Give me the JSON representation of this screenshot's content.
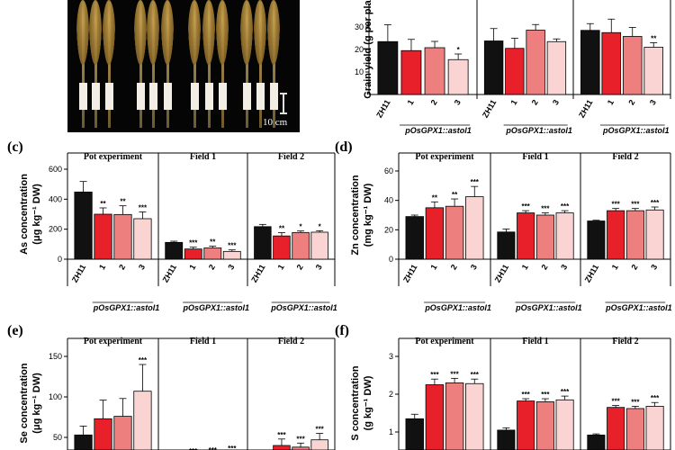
{
  "photo": {
    "scale_label": "10 cm"
  },
  "panel_labels": {
    "c": "(c)",
    "d": "(d)",
    "e": "(e)",
    "f": "(f)"
  },
  "genotype_label": "pOsGPX1::astol1",
  "colors": {
    "ZH11": "#111111",
    "line1": "#e8202a",
    "line2": "#ee7f7f",
    "line3": "#fad4d2"
  },
  "chart_data": [
    {
      "id": "b",
      "type": "bar",
      "ylabel": "Grain yield (g per pla",
      "categories": [
        "ZH11",
        "1",
        "2",
        "3"
      ],
      "groups": [
        "",
        "",
        ""
      ],
      "ylim": [
        0,
        40
      ],
      "yticks": [
        10,
        20,
        30
      ],
      "series": [
        {
          "values": [
            23.5,
            19.5,
            20.8,
            15.5
          ],
          "errors": [
            7.5,
            5.0,
            2.8,
            2.5
          ],
          "stars": [
            "",
            "",
            "",
            "*"
          ]
        },
        {
          "values": [
            23.8,
            20.5,
            28.6,
            23.5
          ],
          "errors": [
            5.5,
            4.5,
            2.5,
            1.2
          ],
          "stars": [
            "",
            "",
            "",
            ""
          ]
        },
        {
          "values": [
            28.5,
            27.5,
            25.8,
            21.0
          ],
          "errors": [
            3.0,
            6.0,
            4.0,
            2.0
          ],
          "stars": [
            "",
            "",
            "",
            "**"
          ]
        }
      ]
    },
    {
      "id": "c",
      "type": "bar",
      "ylabel": "As concentration",
      "ylabel2": "(μg kg⁻¹ DW)",
      "categories": [
        "ZH11",
        "1",
        "2",
        "3"
      ],
      "groups": [
        "Pot experiment",
        "Field 1",
        "Field 2"
      ],
      "ylim": [
        0,
        600
      ],
      "yticks": [
        0,
        200,
        400,
        600
      ],
      "series": [
        {
          "values": [
            448,
            300,
            298,
            270
          ],
          "errors": [
            70,
            42,
            58,
            45
          ],
          "stars": [
            "",
            "**",
            "**",
            "***"
          ]
        },
        {
          "values": [
            112,
            68,
            75,
            52
          ],
          "errors": [
            8,
            12,
            12,
            10
          ],
          "stars": [
            "",
            "***",
            "**",
            "***"
          ]
        },
        {
          "values": [
            217,
            155,
            178,
            180
          ],
          "errors": [
            15,
            22,
            10,
            10
          ],
          "stars": [
            "",
            "**",
            "*",
            "*"
          ]
        }
      ]
    },
    {
      "id": "d",
      "type": "bar",
      "ylabel": "Zn concentration",
      "ylabel2": "(mg kg⁻¹ DW)",
      "categories": [
        "ZH11",
        "1",
        "2",
        "3"
      ],
      "groups": [
        "Pot experiment",
        "Field 1",
        "Field 2"
      ],
      "ylim": [
        0,
        60
      ],
      "yticks": [
        0,
        20,
        40,
        60
      ],
      "series": [
        {
          "values": [
            29,
            35,
            36,
            42.5
          ],
          "errors": [
            1,
            4,
            5,
            7
          ],
          "stars": [
            "",
            "**",
            "**",
            "***"
          ]
        },
        {
          "values": [
            18.5,
            31.5,
            30,
            31.5
          ],
          "errors": [
            2,
            1.5,
            1.5,
            1.5
          ],
          "stars": [
            "",
            "***",
            "***",
            "***"
          ]
        },
        {
          "values": [
            26,
            33,
            33,
            33.5
          ],
          "errors": [
            0.5,
            1.5,
            1.5,
            2
          ],
          "stars": [
            "",
            "***",
            "***",
            "***"
          ]
        }
      ]
    },
    {
      "id": "e",
      "type": "bar",
      "ylabel": "Se concentration",
      "ylabel2": "(μg kg⁻¹ DW)",
      "categories": [
        "ZH11",
        "1",
        "2",
        "3"
      ],
      "groups": [
        "Pot experiment",
        "Field 1",
        "Field 2"
      ],
      "ylim": [
        0,
        150
      ],
      "yticks": [
        50,
        100,
        150
      ],
      "series": [
        {
          "values": [
            53,
            73,
            76,
            107
          ],
          "errors": [
            11,
            23,
            22,
            33
          ],
          "stars": [
            "",
            "",
            "",
            "***"
          ]
        },
        {
          "values": [
            21,
            25,
            26,
            29
          ],
          "errors": [
            2,
            3,
            3,
            2
          ],
          "stars": [
            "",
            "***",
            "***",
            "***"
          ]
        },
        {
          "values": [
            12,
            40,
            38,
            47
          ],
          "errors": [
            3,
            8,
            5,
            8
          ],
          "stars": [
            "",
            "***",
            "***",
            "***"
          ]
        }
      ]
    },
    {
      "id": "f",
      "type": "bar",
      "ylabel": "S concentration",
      "ylabel2": "(g kg⁻¹ DW)",
      "categories": [
        "ZH11",
        "1",
        "2",
        "3"
      ],
      "groups": [
        "Pot experiment",
        "Field 1",
        "Field 2"
      ],
      "ylim": [
        0,
        3
      ],
      "yticks": [
        1,
        2,
        3
      ],
      "series": [
        {
          "values": [
            1.35,
            2.25,
            2.3,
            2.28
          ],
          "errors": [
            0.12,
            0.15,
            0.12,
            0.12
          ],
          "stars": [
            "",
            "***",
            "***",
            "***"
          ]
        },
        {
          "values": [
            1.05,
            1.82,
            1.8,
            1.85
          ],
          "errors": [
            0.06,
            0.06,
            0.08,
            0.1
          ],
          "stars": [
            "",
            "***",
            "***",
            "***"
          ]
        },
        {
          "values": [
            0.92,
            1.65,
            1.62,
            1.68
          ],
          "errors": [
            0.03,
            0.05,
            0.06,
            0.1
          ],
          "stars": [
            "",
            "***",
            "***",
            "***"
          ]
        }
      ]
    }
  ]
}
